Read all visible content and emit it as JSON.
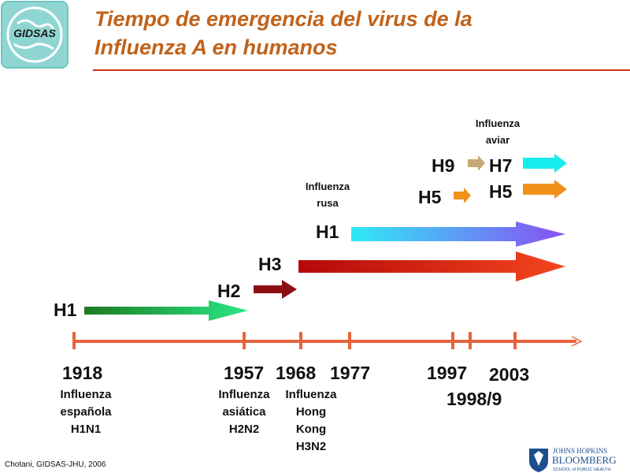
{
  "logo": {
    "text": "GIDSAS"
  },
  "title": {
    "line1": "Tiempo de emergencia del virus de la",
    "line2": "Influenza A en humanos"
  },
  "subtypes": {
    "h1_1918": "H1",
    "h2_1957": "H2",
    "h3_1968": "H3",
    "h1_1977": "H1",
    "h5_1997": "H5",
    "h9_1998": "H9",
    "h7_2003": "H7",
    "h5_2003": "H5"
  },
  "notes": {
    "avian_line1": "Influenza",
    "avian_line2": "aviar",
    "russian_line1": "Influenza",
    "russian_line2": "rusa"
  },
  "years": {
    "y1918": "1918",
    "y1957": "1957",
    "y1968": "1968",
    "y1977": "1977",
    "y1997": "1997",
    "y2003": "2003",
    "y1998": "1998/9"
  },
  "pandemics": {
    "spanish": [
      "Influenza",
      "española",
      "H1N1"
    ],
    "asian": [
      "Influenza",
      "asiática",
      "H2N2"
    ],
    "hongkong": [
      "Influenza",
      "Hong",
      "Kong",
      "H3N2"
    ]
  },
  "credit": "Chotani, GIDSAS-JHU, 2006",
  "footer_logo": {
    "line1": "JOHNS HOPKINS",
    "line2": "BLOOMBERG",
    "line3": "SCHOOL of PUBLIC HEALTH"
  },
  "colors": {
    "title": "#c0621a",
    "timeline": "#e8643c",
    "rule": "#d2311a"
  }
}
